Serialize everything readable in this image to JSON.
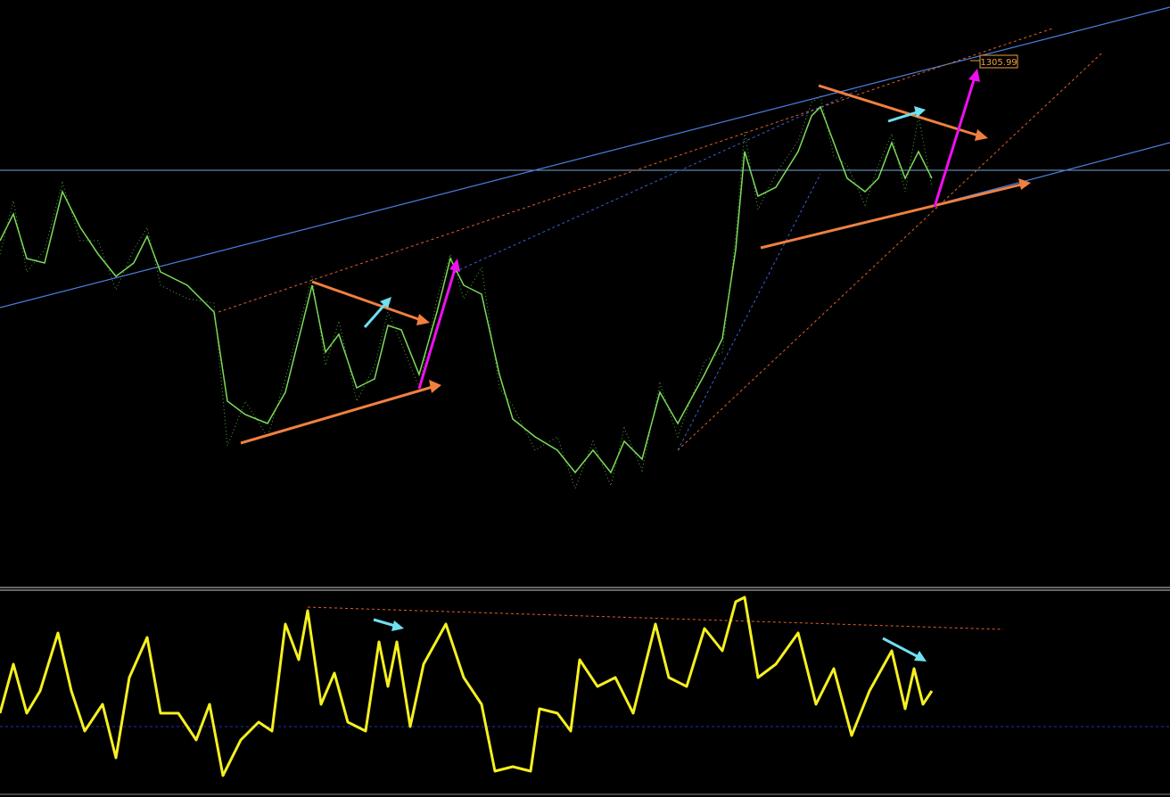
{
  "price_label": "1305.99"
}
